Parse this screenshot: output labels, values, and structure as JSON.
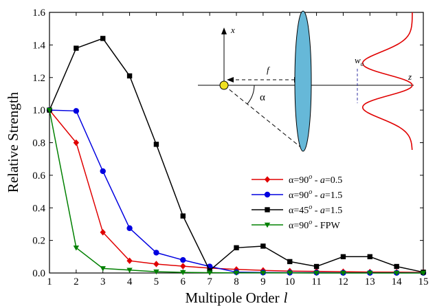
{
  "chart_data": {
    "type": "line",
    "xlabel": "Multipole Order",
    "xlabel_var": "l",
    "ylabel": "Relative Strength",
    "xlim": [
      1,
      15
    ],
    "ylim": [
      0,
      1.6
    ],
    "x_ticks": [
      1,
      2,
      3,
      4,
      5,
      6,
      7,
      8,
      9,
      10,
      11,
      12,
      13,
      14,
      15
    ],
    "x_tick_labels": [
      "1",
      "2",
      "3",
      "4",
      "5",
      "6",
      "7",
      "8",
      "9",
      "10",
      "11",
      "12",
      "13",
      "14",
      "15"
    ],
    "y_ticks": [
      0,
      0.2,
      0.4,
      0.6,
      0.8,
      1.0,
      1.2,
      1.4,
      1.6
    ],
    "y_tick_labels": [
      "0.0",
      "0.2",
      "0.4",
      "0.6",
      "0.8",
      "1.0",
      "1.2",
      "1.4",
      "1.6"
    ],
    "grid": false,
    "legend_position": "right-middle",
    "series": [
      {
        "name": "α=90o - a=0.5",
        "legend": {
          "pre": "α=90",
          "sup": "o",
          "mid": " - ",
          "ital": "a",
          "post": "=0.5"
        },
        "color": "#e00000",
        "marker": "diamond",
        "x": [
          1,
          2,
          3,
          4,
          5,
          6,
          7,
          8,
          9,
          10,
          11,
          12,
          13,
          14,
          15
        ],
        "y": [
          1.0,
          0.8,
          0.25,
          0.075,
          0.055,
          0.042,
          0.03,
          0.022,
          0.016,
          0.012,
          0.01,
          0.008,
          0.006,
          0.005,
          0.004
        ]
      },
      {
        "name": "α=90o - a=1.5",
        "legend": {
          "pre": "α=90",
          "sup": "o",
          "mid": " - ",
          "ital": "a",
          "post": "=1.5"
        },
        "color": "#0000e0",
        "marker": "circle",
        "x": [
          1,
          2,
          3,
          4,
          5,
          6,
          7,
          8,
          9,
          10,
          11,
          12,
          13,
          14,
          15
        ],
        "y": [
          1.0,
          0.995,
          0.625,
          0.275,
          0.125,
          0.08,
          0.04,
          0.005,
          0.003,
          0.002,
          0.002,
          0.001,
          0.001,
          0.001,
          0.001
        ]
      },
      {
        "name": "α=45o - a=1.5",
        "legend": {
          "pre": "α=45",
          "sup": "o",
          "mid": " - ",
          "ital": "a",
          "post": "=1.5"
        },
        "color": "#000000",
        "marker": "square",
        "x": [
          1,
          2,
          3,
          4,
          5,
          6,
          7,
          8,
          9,
          10,
          11,
          12,
          13,
          14,
          15
        ],
        "y": [
          1.0,
          1.38,
          1.44,
          1.21,
          0.79,
          0.35,
          0.015,
          0.155,
          0.165,
          0.07,
          0.04,
          0.1,
          0.1,
          0.04,
          0.005
        ]
      },
      {
        "name": "α=90o - FPW",
        "legend": {
          "pre": "α=90",
          "sup": "o",
          "mid": " - FPW",
          "ital": "",
          "post": ""
        },
        "color": "#008000",
        "marker": "triangle-down",
        "x": [
          1,
          2,
          3,
          4,
          5,
          6,
          7,
          8,
          9,
          10,
          11,
          12,
          13,
          14,
          15
        ],
        "y": [
          1.0,
          0.155,
          0.028,
          0.018,
          0.008,
          0.004,
          0.002,
          0.001,
          0.001,
          0.001,
          0.0,
          0.0,
          0.0,
          0.0,
          0.0
        ]
      }
    ]
  },
  "inset": {
    "x_axis_label": "x",
    "z_axis_label": "z",
    "focal_label": "f",
    "angle_label": "α",
    "waist_label_main": "w",
    "waist_label_sub": "o",
    "lens_color": "#66b8d8",
    "focus_color": "#f0e020",
    "beam_color": "#e00000"
  }
}
